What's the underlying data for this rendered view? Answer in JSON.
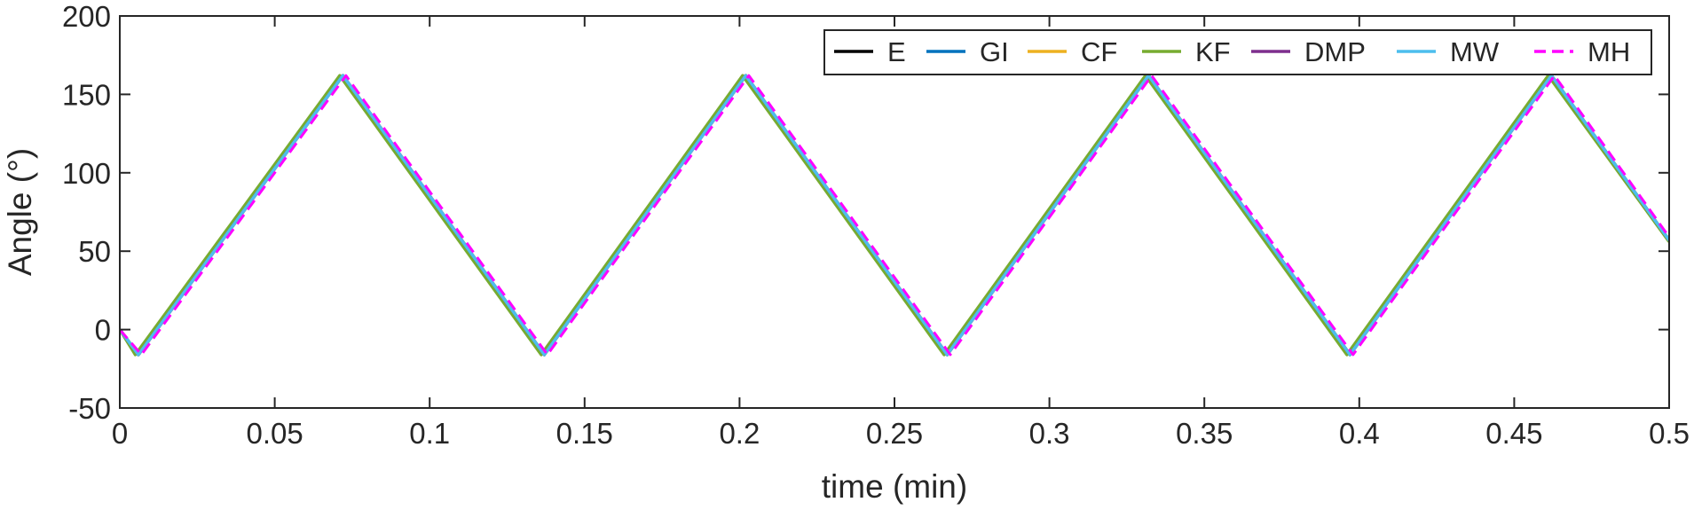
{
  "chart_data": {
    "type": "line",
    "xlabel": "time (min)",
    "ylabel": "Angle (°)",
    "xlim": [
      0,
      0.5
    ],
    "ylim": [
      -50,
      200
    ],
    "xticks": [
      0,
      0.05,
      0.1,
      0.15,
      0.2,
      0.25,
      0.3,
      0.35,
      0.4,
      0.45,
      0.5
    ],
    "xtick_labels": [
      "0",
      "0.05",
      "0.1",
      "0.15",
      "0.2",
      "0.25",
      "0.3",
      "0.35",
      "0.4",
      "0.45",
      "0.5"
    ],
    "yticks": [
      -50,
      0,
      50,
      100,
      150,
      200
    ],
    "ytick_labels": [
      "-50",
      "0",
      "50",
      "100",
      "150",
      "200"
    ],
    "grid": false,
    "legend": {
      "placement": "top-right",
      "orientation": "horizontal"
    },
    "series": [
      {
        "name": "E",
        "color": "#000000",
        "dash": "solid",
        "x": [
          0,
          0.006,
          0.072,
          0.137,
          0.202,
          0.267,
          0.332,
          0.397,
          0.462,
          0.5
        ],
        "y": [
          0,
          -16,
          162,
          -16,
          162,
          -16,
          162,
          -16,
          162,
          57
        ]
      },
      {
        "name": "GI",
        "color": "#0072BD",
        "dash": "solid",
        "x": [
          0,
          0.006,
          0.072,
          0.137,
          0.202,
          0.267,
          0.332,
          0.397,
          0.462,
          0.5
        ],
        "y": [
          0,
          -16,
          162,
          -16,
          162,
          -16,
          162,
          -16,
          162,
          57
        ]
      },
      {
        "name": "CF",
        "color": "#EDB120",
        "dash": "solid",
        "x": [
          0,
          0.006,
          0.072,
          0.137,
          0.202,
          0.267,
          0.332,
          0.397,
          0.462,
          0.5
        ],
        "y": [
          0,
          -16,
          162,
          -16,
          162,
          -16,
          162,
          -16,
          162,
          57
        ]
      },
      {
        "name": "KF",
        "color": "#77AC30",
        "dash": "solid",
        "x": [
          0,
          0.005,
          0.071,
          0.136,
          0.201,
          0.266,
          0.331,
          0.396,
          0.461,
          0.5
        ],
        "y": [
          0,
          -16,
          162,
          -16,
          162,
          -16,
          162,
          -16,
          162,
          56
        ]
      },
      {
        "name": "DMP",
        "color": "#7E2F8E",
        "dash": "solid",
        "x": [
          0,
          0.006,
          0.072,
          0.137,
          0.202,
          0.267,
          0.332,
          0.397,
          0.462,
          0.5
        ],
        "y": [
          0,
          -16,
          162,
          -16,
          162,
          -16,
          162,
          -16,
          162,
          57
        ]
      },
      {
        "name": "MW",
        "color": "#4DBEEE",
        "dash": "solid",
        "x": [
          0,
          0.006,
          0.072,
          0.137,
          0.202,
          0.267,
          0.332,
          0.397,
          0.462,
          0.5
        ],
        "y": [
          0,
          -16,
          162,
          -16,
          162,
          -16,
          162,
          -16,
          162,
          57
        ]
      },
      {
        "name": "MH",
        "color": "#FF00FF",
        "dash": "dashed",
        "x": [
          0,
          0.007,
          0.073,
          0.138,
          0.203,
          0.268,
          0.333,
          0.398,
          0.463,
          0.5
        ],
        "y": [
          0,
          -16,
          162,
          -16,
          162,
          -16,
          162,
          -16,
          162,
          59
        ]
      }
    ]
  }
}
